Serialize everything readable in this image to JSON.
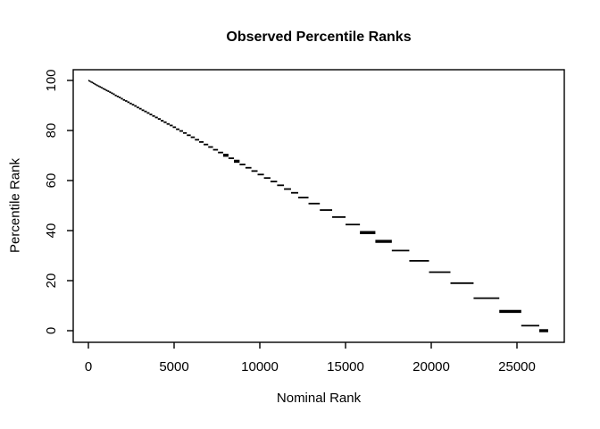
{
  "figure": {
    "background": "#ffffff",
    "foreground": "#000000"
  },
  "chart_data": {
    "type": "scatter",
    "title": "Observed Percentile Ranks",
    "xlabel": "Nominal Rank",
    "ylabel": "Percentile Rank",
    "xlim": [
      -1070,
      27840
    ],
    "ylim": [
      -4,
      104
    ],
    "x_ticks": [
      0,
      5000,
      10000,
      15000,
      20000,
      25000
    ],
    "y_ticks": [
      0,
      20,
      40,
      60,
      80,
      100
    ],
    "grid": false,
    "legend": "none",
    "marker_color": "#000000",
    "note": "Step-like descending series of horizontal tie-group segments whose midpoints lie on the diagonal from (0,100) to (~26800,0); segments widen as nominal rank increases. Each segment: [rank_start, rank_end, percentile_rank, thick_flag(optional)].",
    "segments": [
      [
        0,
        60,
        99.9
      ],
      [
        60,
        123,
        99.7
      ],
      [
        123,
        189,
        99.4
      ],
      [
        189,
        258,
        99.2
      ],
      [
        258,
        330,
        98.9
      ],
      [
        330,
        405,
        98.6
      ],
      [
        405,
        483,
        98.3
      ],
      [
        483,
        564,
        98.0
      ],
      [
        564,
        648,
        97.7
      ],
      [
        648,
        735,
        97.4
      ],
      [
        735,
        825,
        97.1
      ],
      [
        825,
        918,
        96.7
      ],
      [
        918,
        1014,
        96.4
      ],
      [
        1014,
        1113,
        96.0
      ],
      [
        1113,
        1215,
        95.7
      ],
      [
        1215,
        1320,
        95.3
      ],
      [
        1320,
        1428,
        94.9
      ],
      [
        1428,
        1539,
        94.5
      ],
      [
        1539,
        1653,
        94.0
      ],
      [
        1653,
        1770,
        93.6
      ],
      [
        1770,
        1890,
        93.2
      ],
      [
        1890,
        2013,
        92.7
      ],
      [
        2013,
        2139,
        92.2
      ],
      [
        2139,
        2268,
        91.8
      ],
      [
        2268,
        2400,
        91.3
      ],
      [
        2400,
        2535,
        90.8
      ],
      [
        2535,
        2673,
        90.3
      ],
      [
        2673,
        2814,
        89.8
      ],
      [
        2814,
        2958,
        89.2
      ],
      [
        2958,
        3105,
        88.7
      ],
      [
        3105,
        3255,
        88.1
      ],
      [
        3255,
        3408,
        87.6
      ],
      [
        3408,
        3564,
        87.0
      ],
      [
        3564,
        3723,
        86.4
      ],
      [
        3723,
        3885,
        85.8
      ],
      [
        3885,
        4050,
        85.2
      ],
      [
        4050,
        4218,
        84.6
      ],
      [
        4218,
        4389,
        83.9
      ],
      [
        4389,
        4563,
        83.3
      ],
      [
        4563,
        4740,
        82.6
      ],
      [
        4740,
        4920,
        82.0
      ],
      [
        4920,
        5110,
        81.3
      ],
      [
        5110,
        5310,
        80.5
      ],
      [
        5310,
        5520,
        79.8
      ],
      [
        5520,
        5740,
        79.0
      ],
      [
        5740,
        5970,
        78.1
      ],
      [
        5970,
        6210,
        77.3
      ],
      [
        6210,
        6460,
        76.3
      ],
      [
        6460,
        6720,
        75.4
      ],
      [
        6720,
        6990,
        74.4
      ],
      [
        6990,
        7270,
        73.4
      ],
      [
        7270,
        7560,
        72.3
      ],
      [
        7560,
        7860,
        71.2
      ],
      [
        7860,
        8170,
        70.1,
        1
      ],
      [
        8170,
        8490,
        68.9
      ],
      [
        8490,
        8820,
        67.7,
        1
      ],
      [
        8820,
        9160,
        66.4
      ],
      [
        9160,
        9510,
        65.1
      ],
      [
        9510,
        9870,
        63.8
      ],
      [
        9870,
        10240,
        62.4
      ],
      [
        10240,
        10620,
        61.0
      ],
      [
        10620,
        11010,
        59.6
      ],
      [
        11010,
        11410,
        58.1
      ],
      [
        11410,
        11820,
        56.6
      ],
      [
        11820,
        12240,
        55.1
      ],
      [
        12240,
        12840,
        53.2
      ],
      [
        12840,
        13500,
        50.8
      ],
      [
        13500,
        14220,
        48.2
      ],
      [
        14220,
        15000,
        45.4
      ],
      [
        15000,
        15840,
        42.4
      ],
      [
        15840,
        16740,
        39.2,
        1
      ],
      [
        16740,
        17700,
        35.7,
        1
      ],
      [
        17700,
        18720,
        32.0
      ],
      [
        18720,
        19870,
        27.9
      ],
      [
        19870,
        21120,
        23.4
      ],
      [
        21120,
        22470,
        19.0
      ],
      [
        22470,
        23970,
        13.0
      ],
      [
        23970,
        25250,
        7.7,
        1
      ],
      [
        25250,
        26300,
        2.0
      ],
      [
        26300,
        26820,
        0.0,
        1
      ]
    ]
  }
}
